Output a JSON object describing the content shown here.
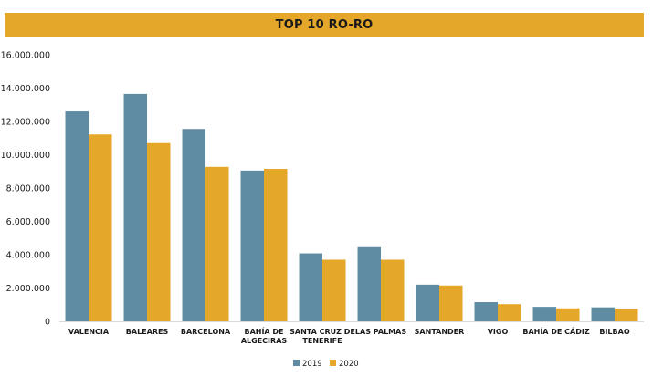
{
  "chart_data": {
    "type": "bar",
    "title": "TOP 10 RO-RO",
    "categories": [
      [
        "VALENCIA"
      ],
      [
        "BALEARES"
      ],
      [
        "BARCELONA"
      ],
      [
        "BAHÍA DE",
        "ALGECIRAS"
      ],
      [
        "SANTA CRUZ DE",
        "TENERIFE"
      ],
      [
        "LAS PALMAS"
      ],
      [
        "SANTANDER"
      ],
      [
        "VIGO"
      ],
      [
        "BAHÍA DE CÁDIZ"
      ],
      [
        "BILBAO"
      ]
    ],
    "series": [
      {
        "name": "2019",
        "color": "#608ca3",
        "values": [
          12600000,
          13650000,
          11550000,
          9050000,
          4080000,
          4450000,
          2200000,
          1150000,
          870000,
          840000
        ]
      },
      {
        "name": "2020",
        "color": "#e5a72a",
        "values": [
          11220000,
          10700000,
          9270000,
          9150000,
          3700000,
          3700000,
          2150000,
          1030000,
          780000,
          750000
        ]
      }
    ],
    "yticks": [
      "0",
      "2.000.000",
      "4.000.000",
      "6.000.000",
      "8.000.000",
      "10.000.000",
      "12.000.000",
      "14.000.000",
      "16.000.000"
    ],
    "ylim": [
      0,
      16000000
    ],
    "grid": false,
    "legend": "bottom-center"
  }
}
